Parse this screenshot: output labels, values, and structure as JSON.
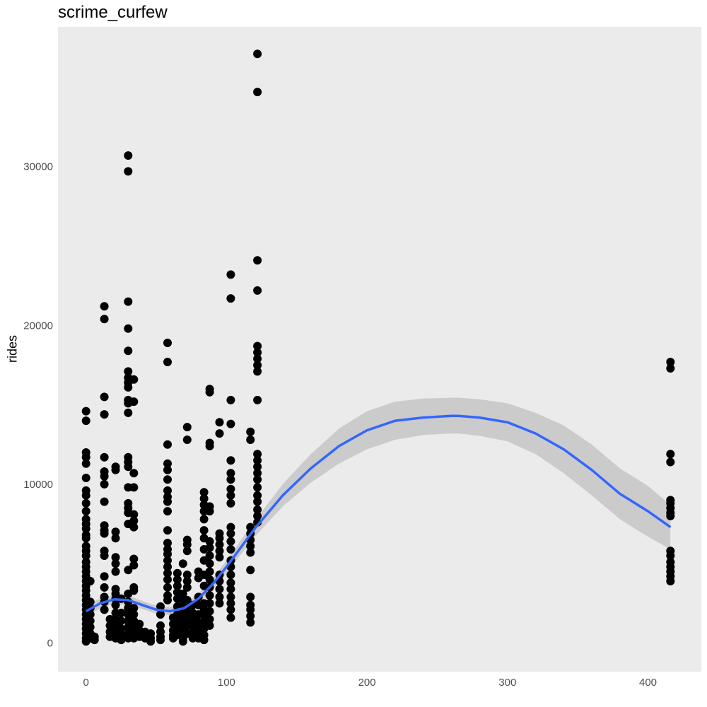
{
  "chart_data": {
    "type": "scatter",
    "title": "scrime_curfew",
    "xlabel": "",
    "ylabel": "rides",
    "xlim": [
      -20,
      438
    ],
    "ylim": [
      -1800,
      38800
    ],
    "x_ticks": [
      0,
      100,
      200,
      300,
      400
    ],
    "y_ticks": [
      0,
      10000,
      20000,
      30000
    ],
    "grid": false,
    "panel_background": "#ebebeb",
    "point_color": "#000000",
    "smooth_color": "#3366ff",
    "ribbon_color": "#c8c8c8",
    "points": [
      [
        0,
        14600
      ],
      [
        0,
        14000
      ],
      [
        0,
        12000
      ],
      [
        0,
        11700
      ],
      [
        0,
        11300
      ],
      [
        0,
        10400
      ],
      [
        0,
        9600
      ],
      [
        0,
        9300
      ],
      [
        0,
        8800
      ],
      [
        0,
        8300
      ],
      [
        0,
        7800
      ],
      [
        0,
        7500
      ],
      [
        0,
        7200
      ],
      [
        0,
        6800
      ],
      [
        0,
        6600
      ],
      [
        0,
        6100
      ],
      [
        0,
        5800
      ],
      [
        0,
        5500
      ],
      [
        0,
        5100
      ],
      [
        0,
        4800
      ],
      [
        0,
        4500
      ],
      [
        0,
        4200
      ],
      [
        0,
        3900
      ],
      [
        0,
        3600
      ],
      [
        0,
        3300
      ],
      [
        0,
        3000
      ],
      [
        0,
        2700
      ],
      [
        0,
        2400
      ],
      [
        0,
        2100
      ],
      [
        0,
        1800
      ],
      [
        0,
        1500
      ],
      [
        0,
        1200
      ],
      [
        0,
        900
      ],
      [
        0,
        600
      ],
      [
        0,
        300
      ],
      [
        0,
        100
      ],
      [
        3,
        3900
      ],
      [
        3,
        2600
      ],
      [
        3,
        2200
      ],
      [
        3,
        1800
      ],
      [
        3,
        1400
      ],
      [
        3,
        1000
      ],
      [
        3,
        600
      ],
      [
        3,
        300
      ],
      [
        6,
        400
      ],
      [
        6,
        200
      ],
      [
        13,
        21200
      ],
      [
        13,
        20400
      ],
      [
        13,
        15500
      ],
      [
        13,
        14400
      ],
      [
        13,
        11700
      ],
      [
        13,
        10800
      ],
      [
        13,
        10500
      ],
      [
        13,
        10000
      ],
      [
        13,
        8900
      ],
      [
        13,
        7400
      ],
      [
        13,
        7100
      ],
      [
        13,
        6900
      ],
      [
        13,
        5800
      ],
      [
        13,
        5500
      ],
      [
        13,
        4200
      ],
      [
        13,
        3500
      ],
      [
        13,
        2900
      ],
      [
        13,
        2600
      ],
      [
        13,
        2100
      ],
      [
        17,
        1500
      ],
      [
        17,
        1100
      ],
      [
        17,
        700
      ],
      [
        17,
        400
      ],
      [
        21,
        11100
      ],
      [
        21,
        10900
      ],
      [
        21,
        7000
      ],
      [
        21,
        6600
      ],
      [
        21,
        5400
      ],
      [
        21,
        5000
      ],
      [
        21,
        4500
      ],
      [
        21,
        3400
      ],
      [
        21,
        3100
      ],
      [
        21,
        2800
      ],
      [
        21,
        2400
      ],
      [
        21,
        1900
      ],
      [
        21,
        1500
      ],
      [
        21,
        1100
      ],
      [
        21,
        800
      ],
      [
        21,
        500
      ],
      [
        21,
        300
      ],
      [
        25,
        2800
      ],
      [
        25,
        1900
      ],
      [
        25,
        1400
      ],
      [
        25,
        900
      ],
      [
        25,
        500
      ],
      [
        25,
        200
      ],
      [
        30,
        30700
      ],
      [
        30,
        29700
      ],
      [
        30,
        21500
      ],
      [
        30,
        19800
      ],
      [
        30,
        18400
      ],
      [
        30,
        17100
      ],
      [
        30,
        16700
      ],
      [
        30,
        16400
      ],
      [
        30,
        16100
      ],
      [
        30,
        15300
      ],
      [
        30,
        15100
      ],
      [
        30,
        14500
      ],
      [
        30,
        11700
      ],
      [
        30,
        11400
      ],
      [
        30,
        11100
      ],
      [
        30,
        9800
      ],
      [
        30,
        8800
      ],
      [
        30,
        8500
      ],
      [
        30,
        8200
      ],
      [
        30,
        7500
      ],
      [
        30,
        4600
      ],
      [
        30,
        3100
      ],
      [
        30,
        2600
      ],
      [
        30,
        2200
      ],
      [
        30,
        1800
      ],
      [
        30,
        1400
      ],
      [
        30,
        1000
      ],
      [
        30,
        600
      ],
      [
        30,
        300
      ],
      [
        34,
        16600
      ],
      [
        34,
        15200
      ],
      [
        34,
        10700
      ],
      [
        34,
        9800
      ],
      [
        34,
        8100
      ],
      [
        34,
        7700
      ],
      [
        34,
        7300
      ],
      [
        34,
        5300
      ],
      [
        34,
        4900
      ],
      [
        34,
        3500
      ],
      [
        34,
        3300
      ],
      [
        34,
        2200
      ],
      [
        34,
        1800
      ],
      [
        34,
        1400
      ],
      [
        34,
        1000
      ],
      [
        34,
        600
      ],
      [
        34,
        300
      ],
      [
        38,
        1200
      ],
      [
        38,
        800
      ],
      [
        38,
        400
      ],
      [
        42,
        700
      ],
      [
        42,
        300
      ],
      [
        46,
        600
      ],
      [
        46,
        300
      ],
      [
        46,
        100
      ],
      [
        53,
        2300
      ],
      [
        53,
        1800
      ],
      [
        53,
        1100
      ],
      [
        53,
        700
      ],
      [
        53,
        400
      ],
      [
        53,
        200
      ],
      [
        58,
        18900
      ],
      [
        58,
        17700
      ],
      [
        58,
        12500
      ],
      [
        58,
        11300
      ],
      [
        58,
        10900
      ],
      [
        58,
        10300
      ],
      [
        58,
        9600
      ],
      [
        58,
        9200
      ],
      [
        58,
        8900
      ],
      [
        58,
        8300
      ],
      [
        58,
        7100
      ],
      [
        58,
        6300
      ],
      [
        58,
        5900
      ],
      [
        58,
        5600
      ],
      [
        58,
        5200
      ],
      [
        58,
        4800
      ],
      [
        58,
        4400
      ],
      [
        58,
        4000
      ],
      [
        58,
        3500
      ],
      [
        58,
        3000
      ],
      [
        58,
        2700
      ],
      [
        62,
        1600
      ],
      [
        62,
        1200
      ],
      [
        62,
        800
      ],
      [
        62,
        500
      ],
      [
        62,
        300
      ],
      [
        65,
        4400
      ],
      [
        65,
        4000
      ],
      [
        65,
        3600
      ],
      [
        65,
        3200
      ],
      [
        65,
        2800
      ],
      [
        65,
        2300
      ],
      [
        65,
        1800
      ],
      [
        65,
        1300
      ],
      [
        65,
        900
      ],
      [
        65,
        500
      ],
      [
        69,
        5000
      ],
      [
        69,
        3100
      ],
      [
        69,
        2700
      ],
      [
        69,
        2300
      ],
      [
        69,
        1900
      ],
      [
        69,
        1500
      ],
      [
        69,
        1100
      ],
      [
        69,
        700
      ],
      [
        69,
        300
      ],
      [
        69,
        100
      ],
      [
        72,
        13600
      ],
      [
        72,
        12800
      ],
      [
        72,
        6500
      ],
      [
        72,
        6200
      ],
      [
        72,
        5800
      ],
      [
        72,
        4300
      ],
      [
        72,
        3900
      ],
      [
        72,
        3500
      ],
      [
        72,
        2700
      ],
      [
        72,
        2300
      ],
      [
        72,
        1900
      ],
      [
        72,
        1500
      ],
      [
        72,
        1100
      ],
      [
        72,
        600
      ],
      [
        76,
        2400
      ],
      [
        76,
        1900
      ],
      [
        76,
        1500
      ],
      [
        76,
        1100
      ],
      [
        76,
        700
      ],
      [
        76,
        300
      ],
      [
        80,
        4500
      ],
      [
        80,
        4100
      ],
      [
        80,
        2900
      ],
      [
        80,
        2400
      ],
      [
        80,
        1800
      ],
      [
        80,
        1300
      ],
      [
        80,
        900
      ],
      [
        80,
        500
      ],
      [
        80,
        300
      ],
      [
        84,
        9500
      ],
      [
        84,
        9100
      ],
      [
        84,
        8700
      ],
      [
        84,
        8300
      ],
      [
        84,
        7800
      ],
      [
        84,
        7100
      ],
      [
        84,
        6600
      ],
      [
        84,
        5900
      ],
      [
        84,
        5200
      ],
      [
        84,
        4300
      ],
      [
        84,
        3600
      ],
      [
        84,
        2500
      ],
      [
        84,
        2100
      ],
      [
        84,
        1700
      ],
      [
        84,
        1300
      ],
      [
        84,
        900
      ],
      [
        84,
        500
      ],
      [
        84,
        200
      ],
      [
        88,
        16000
      ],
      [
        88,
        15800
      ],
      [
        88,
        12600
      ],
      [
        88,
        12400
      ],
      [
        88,
        8600
      ],
      [
        88,
        8300
      ],
      [
        88,
        6400
      ],
      [
        88,
        6000
      ],
      [
        88,
        5500
      ],
      [
        88,
        5000
      ],
      [
        88,
        4500
      ],
      [
        88,
        4000
      ],
      [
        88,
        3500
      ],
      [
        88,
        3000
      ],
      [
        88,
        2500
      ],
      [
        88,
        2000
      ],
      [
        88,
        1500
      ],
      [
        88,
        1100
      ],
      [
        95,
        13900
      ],
      [
        95,
        13200
      ],
      [
        95,
        6900
      ],
      [
        95,
        6600
      ],
      [
        95,
        6200
      ],
      [
        95,
        5800
      ],
      [
        95,
        5400
      ],
      [
        95,
        4300
      ],
      [
        95,
        3900
      ],
      [
        95,
        3400
      ],
      [
        95,
        2900
      ],
      [
        95,
        2500
      ],
      [
        103,
        23200
      ],
      [
        103,
        21700
      ],
      [
        103,
        15300
      ],
      [
        103,
        13800
      ],
      [
        103,
        11500
      ],
      [
        103,
        10700
      ],
      [
        103,
        10300
      ],
      [
        103,
        9700
      ],
      [
        103,
        9300
      ],
      [
        103,
        8800
      ],
      [
        103,
        7300
      ],
      [
        103,
        6900
      ],
      [
        103,
        6400
      ],
      [
        103,
        5900
      ],
      [
        103,
        5200
      ],
      [
        103,
        4800
      ],
      [
        103,
        4300
      ],
      [
        103,
        3800
      ],
      [
        103,
        3400
      ],
      [
        103,
        2900
      ],
      [
        103,
        2500
      ],
      [
        103,
        2100
      ],
      [
        103,
        1600
      ],
      [
        117,
        13300
      ],
      [
        117,
        12800
      ],
      [
        117,
        7300
      ],
      [
        117,
        6900
      ],
      [
        117,
        6500
      ],
      [
        117,
        6100
      ],
      [
        117,
        5700
      ],
      [
        117,
        4600
      ],
      [
        117,
        2900
      ],
      [
        117,
        2400
      ],
      [
        117,
        2100
      ],
      [
        117,
        1700
      ],
      [
        117,
        1300
      ],
      [
        122,
        37100
      ],
      [
        122,
        34700
      ],
      [
        122,
        24100
      ],
      [
        122,
        22200
      ],
      [
        122,
        18700
      ],
      [
        122,
        18300
      ],
      [
        122,
        17900
      ],
      [
        122,
        17500
      ],
      [
        122,
        17100
      ],
      [
        122,
        15300
      ],
      [
        122,
        11900
      ],
      [
        122,
        11500
      ],
      [
        122,
        11100
      ],
      [
        122,
        10700
      ],
      [
        122,
        10300
      ],
      [
        122,
        9800
      ],
      [
        122,
        9300
      ],
      [
        122,
        8900
      ],
      [
        122,
        8400
      ],
      [
        122,
        8000
      ],
      [
        122,
        7600
      ],
      [
        416,
        17700
      ],
      [
        416,
        17300
      ],
      [
        416,
        11900
      ],
      [
        416,
        11400
      ],
      [
        416,
        9000
      ],
      [
        416,
        8800
      ],
      [
        416,
        8500
      ],
      [
        416,
        8200
      ],
      [
        416,
        8000
      ],
      [
        416,
        5800
      ],
      [
        416,
        5500
      ],
      [
        416,
        5100
      ],
      [
        416,
        4800
      ],
      [
        416,
        4500
      ],
      [
        416,
        4200
      ],
      [
        416,
        3900
      ]
    ],
    "smooth_line": {
      "x": [
        0,
        10,
        20,
        30,
        40,
        50,
        60,
        70,
        80,
        90,
        100,
        110,
        120,
        140,
        160,
        180,
        200,
        220,
        240,
        260,
        265,
        280,
        300,
        320,
        340,
        360,
        380,
        400,
        416
      ],
      "y": [
        2000,
        2500,
        2750,
        2700,
        2400,
        2100,
        2000,
        2200,
        2800,
        3700,
        4800,
        6000,
        7200,
        9300,
        11000,
        12400,
        13400,
        14000,
        14200,
        14300,
        14300,
        14200,
        13900,
        13200,
        12200,
        10900,
        9400,
        8300,
        7300
      ],
      "lower": [
        1600,
        2200,
        2450,
        2400,
        2150,
        1850,
        1750,
        1950,
        2500,
        3350,
        4400,
        5550,
        6700,
        8600,
        10100,
        11300,
        12200,
        12800,
        13100,
        13200,
        13200,
        13050,
        12700,
        11900,
        10700,
        9300,
        7800,
        6700,
        5900
      ],
      "upper": [
        2400,
        2800,
        3050,
        3000,
        2650,
        2350,
        2250,
        2450,
        3100,
        4050,
        5200,
        6450,
        7700,
        10000,
        11900,
        13500,
        14600,
        15200,
        15400,
        15450,
        15450,
        15350,
        15100,
        14500,
        13700,
        12500,
        11000,
        9900,
        8700
      ]
    }
  }
}
